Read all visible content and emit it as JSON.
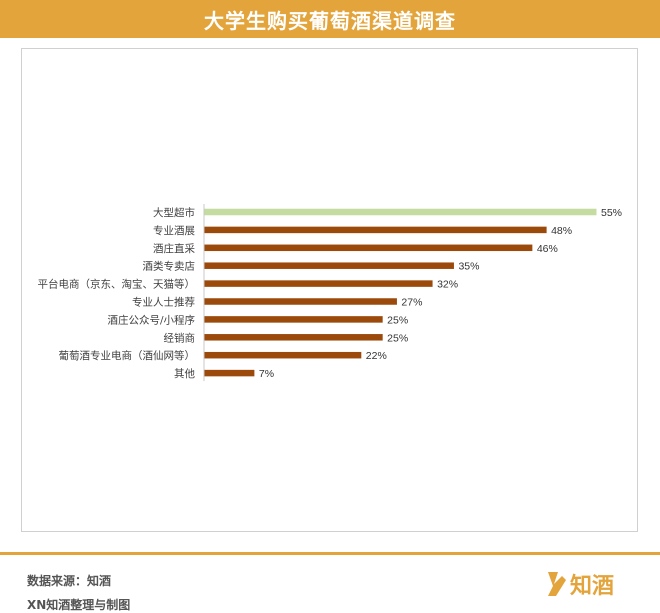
{
  "header": {
    "title": "大学生购买葡萄酒渠道调查"
  },
  "chart_data": {
    "type": "bar",
    "orientation": "horizontal",
    "categories": [
      "大型超市",
      "专业酒展",
      "酒庄直采",
      "酒类专卖店",
      "平台电商（京东、淘宝、天猫等）",
      "专业人士推荐",
      "酒庄公众号/小程序",
      "经销商",
      "葡萄酒专业电商（酒仙网等）",
      "其他"
    ],
    "values": [
      55,
      48,
      46,
      35,
      32,
      27,
      25,
      25,
      22,
      7
    ],
    "value_labels": [
      "55%",
      "48%",
      "46%",
      "35%",
      "32%",
      "27%",
      "25%",
      "25%",
      "22%",
      "7%"
    ],
    "unit": "%",
    "highlight_index": 0,
    "colors": {
      "highlight": "#c5dca0",
      "bar": "#9c4a0c",
      "title_bar": "#e3a43c",
      "logo": "#e3a43c"
    },
    "xlim": [
      0,
      55
    ],
    "grid": false,
    "legend": "none"
  },
  "footer": {
    "source": "数据来源：知酒",
    "credit": "XN知酒整理与制图"
  },
  "logo": {
    "text": "知酒"
  }
}
